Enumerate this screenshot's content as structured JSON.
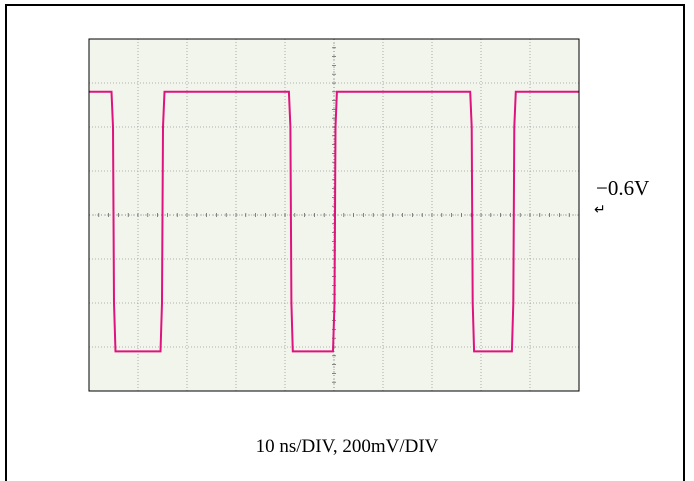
{
  "caption": "10 ns/DIV, 200mV/DIV",
  "reference_marker": {
    "label": "−0.6V",
    "arrow": "↵"
  },
  "colors": {
    "trace": "#e0127e",
    "screen": "#f2f5ec",
    "grid": "#9a9a9a",
    "frame": "#000000"
  },
  "chart_data": {
    "type": "line",
    "title": "",
    "xlabel": "",
    "ylabel": "",
    "grid": true,
    "divisions": {
      "x": 10,
      "y": 8
    },
    "xlim": [
      0,
      100
    ],
    "ylim": [
      -0.8,
      0.8
    ],
    "x_units": "ns",
    "y_units": "V",
    "series": [
      {
        "x": [
          0,
          4.6,
          4.9,
          5.1,
          5.4,
          14.6,
          14.9,
          15.1,
          15.4,
          40.8,
          41.1,
          41.3,
          41.6,
          49.8,
          50.1,
          50.3,
          50.6,
          77.8,
          78.1,
          78.3,
          78.6,
          86.3,
          86.6,
          86.8,
          87.1,
          100
        ],
        "y": [
          0.56,
          0.56,
          0.4,
          -0.4,
          -0.62,
          -0.62,
          -0.4,
          0.4,
          0.56,
          0.56,
          0.4,
          -0.4,
          -0.62,
          -0.62,
          -0.4,
          0.4,
          0.56,
          0.56,
          0.4,
          -0.4,
          -0.62,
          -0.62,
          -0.4,
          0.4,
          0.56,
          0.56
        ]
      }
    ]
  }
}
